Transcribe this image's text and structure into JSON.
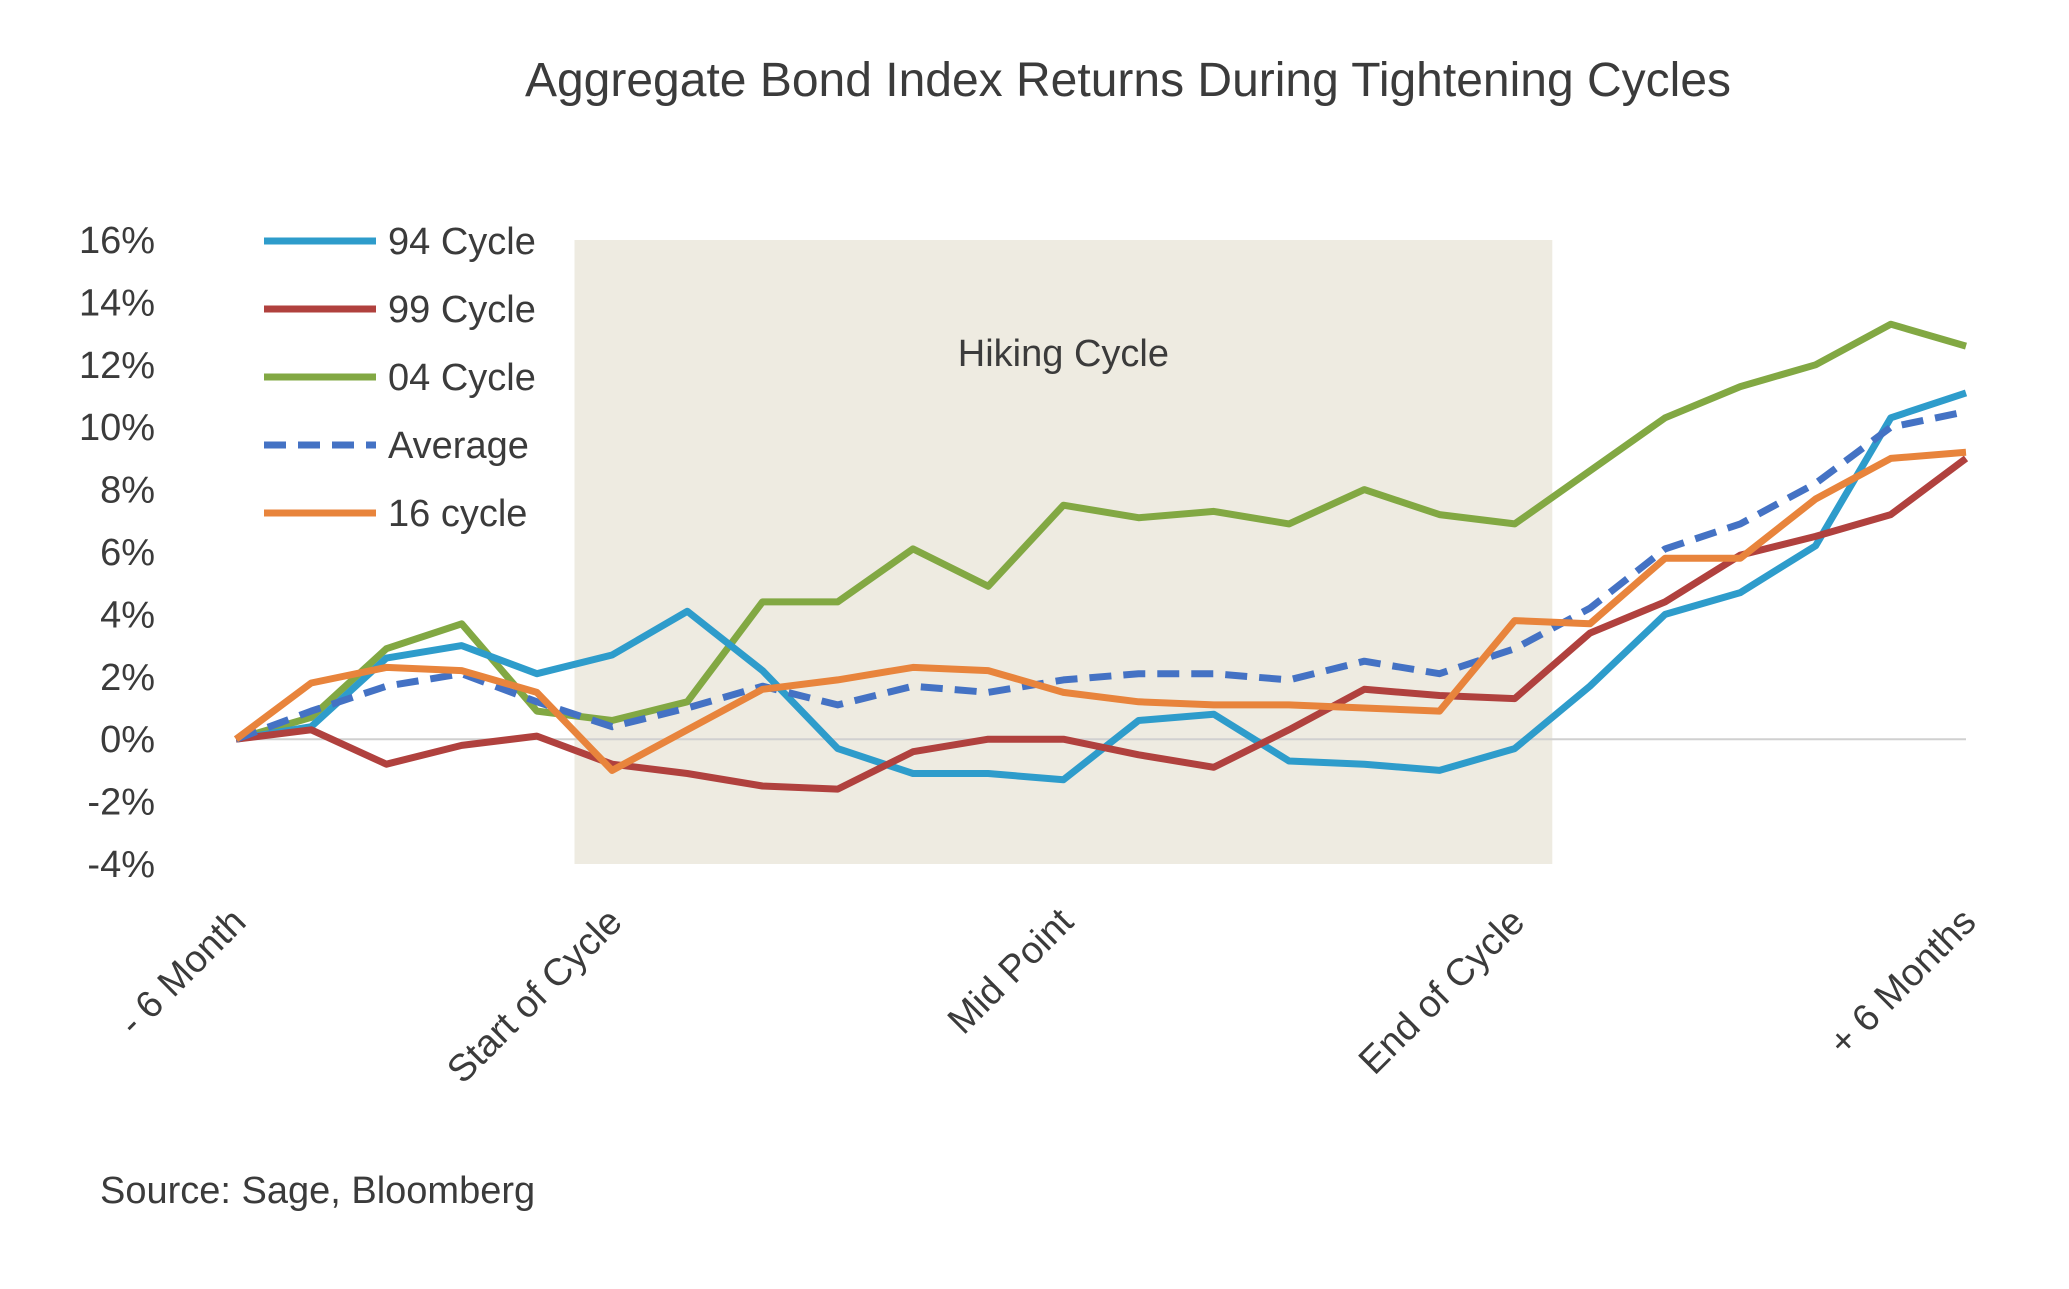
{
  "chart_data": {
    "type": "line",
    "title": "Aggregate Bond Index Returns During Tightening Cycles",
    "xlabel": "",
    "ylabel": "",
    "ylim": [
      -4,
      16
    ],
    "y_tick_step": 2,
    "y_ticks": [
      "16%",
      "14%",
      "12%",
      "10%",
      "8%",
      "6%",
      "4%",
      "2%",
      "0%",
      "-2%",
      "-4%"
    ],
    "x_count": 24,
    "x_tick_labels": [
      {
        "index": 0,
        "label": "- 6 Month"
      },
      {
        "index": 5,
        "label": "Start of Cycle"
      },
      {
        "index": 11,
        "label": "Mid Point"
      },
      {
        "index": 17,
        "label": "End of Cycle"
      },
      {
        "index": 23,
        "label": "+ 6 Months"
      }
    ],
    "shaded_region": {
      "label": "Hiking Cycle",
      "from_index": 4.5,
      "to_index": 17.5,
      "color": "#eeebe1"
    },
    "legend_position": "top-left",
    "grid": false,
    "series": [
      {
        "name": "94 Cycle",
        "color": "#2e9ccb",
        "dashed": false,
        "values": [
          0.0,
          0.4,
          2.6,
          3.0,
          2.1,
          2.7,
          4.1,
          2.2,
          -0.3,
          -1.1,
          -1.1,
          -1.3,
          0.6,
          0.8,
          -0.7,
          -0.8,
          -1.0,
          -0.3,
          1.7,
          4.0,
          4.7,
          6.2,
          10.3,
          11.1
        ]
      },
      {
        "name": "99 Cycle",
        "color": "#b0413e",
        "dashed": false,
        "values": [
          0.0,
          0.3,
          -0.8,
          -0.2,
          0.1,
          -0.8,
          -1.1,
          -1.5,
          -1.6,
          -0.4,
          0.0,
          0.0,
          -0.5,
          -0.9,
          0.3,
          1.6,
          1.4,
          1.3,
          3.4,
          4.4,
          5.9,
          6.5,
          7.2,
          9.0
        ]
      },
      {
        "name": "04 Cycle",
        "color": "#82a843",
        "dashed": false,
        "values": [
          0.0,
          0.7,
          2.9,
          3.7,
          0.9,
          0.6,
          1.2,
          4.4,
          4.4,
          6.1,
          4.9,
          7.5,
          7.1,
          7.3,
          6.9,
          8.0,
          7.2,
          6.9,
          8.6,
          10.3,
          11.3,
          12.0,
          13.3,
          12.6
        ]
      },
      {
        "name": "Average",
        "color": "#4472c4",
        "dashed": true,
        "values": [
          0.0,
          0.9,
          1.7,
          2.1,
          1.2,
          0.4,
          1.0,
          1.7,
          1.1,
          1.7,
          1.5,
          1.9,
          2.1,
          2.1,
          1.9,
          2.5,
          2.1,
          2.9,
          4.2,
          6.1,
          6.9,
          8.2,
          10.0,
          10.5
        ]
      },
      {
        "name": "16 cycle",
        "color": "#e8843c",
        "dashed": false,
        "values": [
          0.0,
          1.8,
          2.3,
          2.2,
          1.5,
          -1.0,
          0.3,
          1.6,
          1.9,
          2.3,
          2.2,
          1.5,
          1.2,
          1.1,
          1.1,
          1.0,
          0.9,
          3.8,
          3.7,
          5.8,
          5.8,
          7.7,
          9.0,
          9.2
        ]
      }
    ],
    "source": "Source: Sage, Bloomberg"
  }
}
